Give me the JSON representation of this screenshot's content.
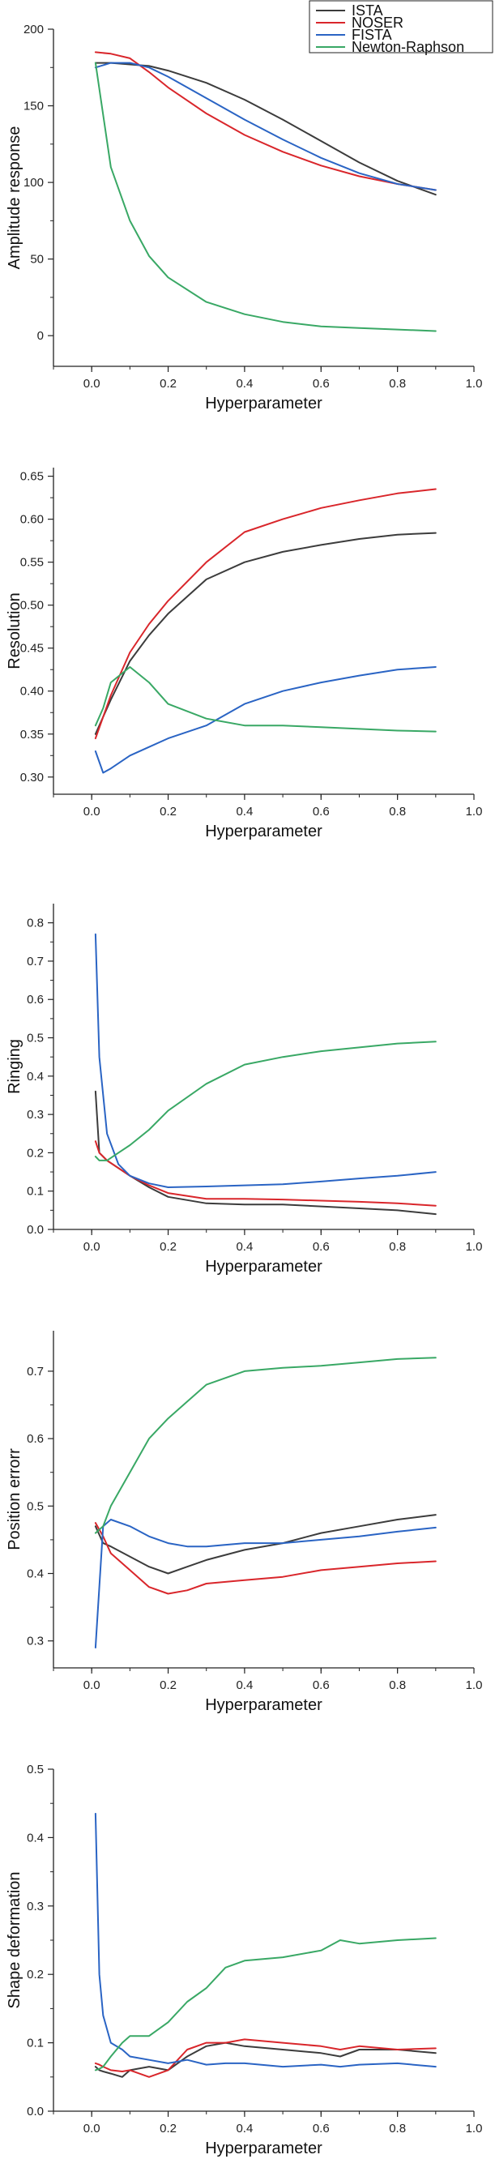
{
  "legend": [
    {
      "name": "ISTA",
      "color": "#3c3c3c"
    },
    {
      "name": "NOSER",
      "color": "#d9262b"
    },
    {
      "name": "FISTA",
      "color": "#2a64c4"
    },
    {
      "name": "Newton-Raphson",
      "color": "#39a865"
    }
  ],
  "chart_data": [
    {
      "type": "line",
      "xlabel": "Hyperparameter",
      "ylabel": "Amplitude response",
      "xlim": [
        -0.1,
        1.0
      ],
      "ylim": [
        -20,
        200
      ],
      "xticks": [
        "0.0",
        "0.2",
        "0.4",
        "0.6",
        "0.8",
        "1.0"
      ],
      "yticks": [
        "0",
        "50",
        "100",
        "150",
        "200"
      ],
      "x": [
        0.01,
        0.05,
        0.1,
        0.15,
        0.2,
        0.3,
        0.4,
        0.5,
        0.6,
        0.7,
        0.8,
        0.9
      ],
      "series": [
        {
          "name": "ISTA",
          "values": [
            178,
            178,
            177,
            176,
            173,
            165,
            154,
            141,
            127,
            113,
            101,
            92
          ]
        },
        {
          "name": "NOSER",
          "values": [
            185,
            184,
            181,
            172,
            162,
            145,
            131,
            120,
            111,
            104,
            99,
            95
          ]
        },
        {
          "name": "FISTA",
          "values": [
            175,
            178,
            178,
            175,
            169,
            155,
            141,
            128,
            116,
            106,
            99,
            95
          ]
        },
        {
          "name": "Newton-Raphson",
          "values": [
            178,
            110,
            75,
            52,
            38,
            22,
            14,
            9,
            6,
            5,
            4,
            3
          ]
        }
      ]
    },
    {
      "type": "line",
      "xlabel": "Hyperparameter",
      "ylabel": "Resolution",
      "xlim": [
        -0.1,
        1.0
      ],
      "ylim": [
        0.28,
        0.66
      ],
      "xticks": [
        "0.0",
        "0.2",
        "0.4",
        "0.6",
        "0.8",
        "1.0"
      ],
      "yticks": [
        "0.30",
        "0.35",
        "0.40",
        "0.45",
        "0.50",
        "0.55",
        "0.60",
        "0.65"
      ],
      "x": [
        0.01,
        0.03,
        0.05,
        0.1,
        0.15,
        0.2,
        0.3,
        0.4,
        0.5,
        0.6,
        0.7,
        0.8,
        0.9
      ],
      "series": [
        {
          "name": "ISTA",
          "values": [
            0.35,
            0.37,
            0.39,
            0.435,
            0.465,
            0.49,
            0.53,
            0.55,
            0.562,
            0.57,
            0.577,
            0.582,
            0.584
          ]
        },
        {
          "name": "NOSER",
          "values": [
            0.345,
            0.37,
            0.395,
            0.445,
            0.478,
            0.505,
            0.55,
            0.585,
            0.6,
            0.613,
            0.622,
            0.63,
            0.635
          ]
        },
        {
          "name": "FISTA",
          "values": [
            0.33,
            0.305,
            0.31,
            0.325,
            0.335,
            0.345,
            0.36,
            0.385,
            0.4,
            0.41,
            0.418,
            0.425,
            0.428
          ]
        },
        {
          "name": "Newton-Raphson",
          "values": [
            0.36,
            0.38,
            0.41,
            0.428,
            0.41,
            0.385,
            0.368,
            0.36,
            0.36,
            0.358,
            0.356,
            0.354,
            0.353
          ]
        }
      ]
    },
    {
      "type": "line",
      "xlabel": "Hyperparameter",
      "ylabel": "Ringing",
      "xlim": [
        -0.1,
        1.0
      ],
      "ylim": [
        0,
        0.85
      ],
      "xticks": [
        "0.0",
        "0.2",
        "0.4",
        "0.6",
        "0.8",
        "1.0"
      ],
      "yticks": [
        "0.0",
        "0.1",
        "0.2",
        "0.3",
        "0.4",
        "0.5",
        "0.6",
        "0.7",
        "0.8"
      ],
      "x": [
        0.01,
        0.02,
        0.04,
        0.07,
        0.1,
        0.15,
        0.2,
        0.3,
        0.4,
        0.5,
        0.6,
        0.7,
        0.8,
        0.9
      ],
      "series": [
        {
          "name": "ISTA",
          "values": [
            0.36,
            0.2,
            0.18,
            0.16,
            0.14,
            0.11,
            0.085,
            0.068,
            0.065,
            0.065,
            0.06,
            0.055,
            0.05,
            0.04
          ]
        },
        {
          "name": "NOSER",
          "values": [
            0.23,
            0.2,
            0.18,
            0.16,
            0.14,
            0.115,
            0.095,
            0.08,
            0.08,
            0.078,
            0.075,
            0.072,
            0.068,
            0.062
          ]
        },
        {
          "name": "FISTA",
          "values": [
            0.77,
            0.45,
            0.25,
            0.17,
            0.14,
            0.12,
            0.11,
            0.112,
            0.115,
            0.118,
            0.125,
            0.133,
            0.14,
            0.15
          ]
        },
        {
          "name": "Newton-Raphson",
          "values": [
            0.19,
            0.18,
            0.18,
            0.2,
            0.22,
            0.26,
            0.31,
            0.38,
            0.43,
            0.45,
            0.465,
            0.475,
            0.485,
            0.49
          ]
        }
      ]
    },
    {
      "type": "line",
      "xlabel": "Hyperparameter",
      "ylabel": "Position errorr",
      "xlim": [
        -0.1,
        1.0
      ],
      "ylim": [
        0.26,
        0.76
      ],
      "xticks": [
        "0.0",
        "0.2",
        "0.4",
        "0.6",
        "0.8",
        "1.0"
      ],
      "yticks": [
        "0.3",
        "0.4",
        "0.5",
        "0.6",
        "0.7"
      ],
      "x": [
        0.01,
        0.03,
        0.05,
        0.1,
        0.15,
        0.2,
        0.25,
        0.3,
        0.4,
        0.5,
        0.6,
        0.7,
        0.8,
        0.9
      ],
      "series": [
        {
          "name": "ISTA",
          "values": [
            0.47,
            0.445,
            0.44,
            0.425,
            0.41,
            0.4,
            0.41,
            0.42,
            0.435,
            0.445,
            0.46,
            0.47,
            0.48,
            0.487
          ]
        },
        {
          "name": "NOSER",
          "values": [
            0.475,
            0.455,
            0.43,
            0.405,
            0.38,
            0.37,
            0.375,
            0.385,
            0.39,
            0.395,
            0.405,
            0.41,
            0.415,
            0.418
          ]
        },
        {
          "name": "FISTA",
          "values": [
            0.29,
            0.47,
            0.48,
            0.47,
            0.455,
            0.445,
            0.44,
            0.44,
            0.445,
            0.445,
            0.45,
            0.455,
            0.462,
            0.468
          ]
        },
        {
          "name": "Newton-Raphson",
          "values": [
            0.46,
            0.47,
            0.5,
            0.55,
            0.6,
            0.63,
            0.655,
            0.68,
            0.7,
            0.705,
            0.708,
            0.713,
            0.718,
            0.72
          ]
        }
      ]
    },
    {
      "type": "line",
      "xlabel": "Hyperparameter",
      "ylabel": "Shape deformation",
      "xlim": [
        -0.1,
        1.0
      ],
      "ylim": [
        0,
        0.5
      ],
      "xticks": [
        "0.0",
        "0.2",
        "0.4",
        "0.6",
        "0.8",
        "1.0"
      ],
      "yticks": [
        "0.0",
        "0.1",
        "0.2",
        "0.3",
        "0.4",
        "0.5"
      ],
      "x": [
        0.01,
        0.02,
        0.03,
        0.05,
        0.08,
        0.1,
        0.15,
        0.2,
        0.25,
        0.3,
        0.35,
        0.4,
        0.5,
        0.6,
        0.65,
        0.7,
        0.8,
        0.9
      ],
      "series": [
        {
          "name": "ISTA",
          "values": [
            0.065,
            0.06,
            0.058,
            0.055,
            0.05,
            0.06,
            0.065,
            0.06,
            0.08,
            0.095,
            0.1,
            0.095,
            0.09,
            0.085,
            0.08,
            0.09,
            0.09,
            0.085
          ]
        },
        {
          "name": "NOSER",
          "values": [
            0.07,
            0.068,
            0.065,
            0.06,
            0.058,
            0.06,
            0.05,
            0.06,
            0.09,
            0.1,
            0.1,
            0.105,
            0.1,
            0.095,
            0.09,
            0.095,
            0.09,
            0.092
          ]
        },
        {
          "name": "FISTA",
          "values": [
            0.435,
            0.2,
            0.14,
            0.1,
            0.09,
            0.08,
            0.075,
            0.07,
            0.075,
            0.068,
            0.07,
            0.07,
            0.065,
            0.068,
            0.065,
            0.068,
            0.07,
            0.065
          ]
        },
        {
          "name": "Newton-Raphson",
          "values": [
            0.06,
            0.062,
            0.065,
            0.08,
            0.1,
            0.11,
            0.11,
            0.13,
            0.16,
            0.18,
            0.21,
            0.22,
            0.225,
            0.235,
            0.25,
            0.245,
            0.25,
            0.253
          ]
        }
      ]
    }
  ]
}
